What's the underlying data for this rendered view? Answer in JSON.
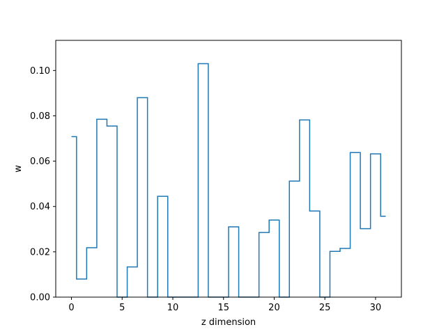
{
  "chart_data": {
    "type": "line",
    "style": "step-mid",
    "title": "",
    "xlabel": "z dimension",
    "ylabel": "w",
    "xlim": [
      -1.55,
      32.55
    ],
    "ylim": [
      0,
      0.1133
    ],
    "x_ticks": [
      0,
      5,
      10,
      15,
      20,
      25,
      30
    ],
    "x_tick_labels": [
      "0",
      "5",
      "10",
      "15",
      "20",
      "25",
      "30"
    ],
    "y_ticks": [
      0.0,
      0.02,
      0.04,
      0.06,
      0.08,
      0.1
    ],
    "y_tick_labels": [
      "0.00",
      "0.02",
      "0.04",
      "0.06",
      "0.08",
      "0.10"
    ],
    "grid": false,
    "series": [
      {
        "color": "#1f77b4",
        "x": [
          0,
          1,
          2,
          3,
          4,
          5,
          6,
          7,
          8,
          9,
          10,
          11,
          12,
          13,
          14,
          15,
          16,
          17,
          18,
          19,
          20,
          21,
          22,
          23,
          24,
          25,
          26,
          27,
          28,
          29,
          30,
          31
        ],
        "values": [
          0.0708,
          0.008,
          0.0218,
          0.0785,
          0.0755,
          0.0,
          0.0133,
          0.088,
          0.0,
          0.0445,
          0.0,
          0.0,
          0.0,
          0.103,
          0.0,
          0.0,
          0.031,
          0.0,
          0.0,
          0.0285,
          0.034,
          0.0,
          0.0512,
          0.0782,
          0.038,
          0.0,
          0.0202,
          0.0215,
          0.0638,
          0.0302,
          0.0632,
          0.0357
        ]
      }
    ]
  }
}
